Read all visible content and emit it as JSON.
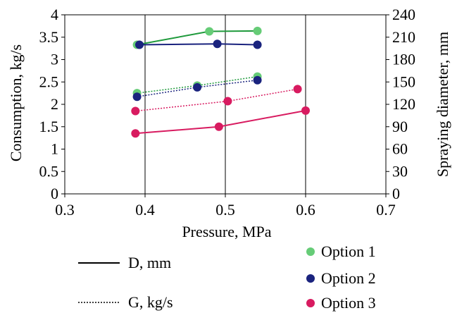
{
  "chart_data": {
    "type": "scatter",
    "title": "",
    "xlabel": "Pressure, MPa",
    "ylabel_left": "Consumption, kg/s",
    "ylabel_right": "Spraying diameter, mm",
    "xlim": [
      0.3,
      0.7
    ],
    "ylim_left": [
      0,
      4
    ],
    "ylim_right": [
      0,
      240
    ],
    "x_ticks": [
      "0.3",
      "0.4",
      "0.5",
      "0.6",
      "0.7"
    ],
    "y_left_ticks": [
      "0",
      "0.5",
      "1",
      "1.5",
      "2",
      "2.5",
      "3",
      "3.5",
      "4"
    ],
    "y_right_ticks": [
      "0",
      "30",
      "60",
      "90",
      "120",
      "150",
      "180",
      "210",
      "240"
    ],
    "grid": "vertical",
    "legend": {
      "line_styles": [
        {
          "label": "D, mm",
          "style": "solid"
        },
        {
          "label": "G, kg/s",
          "style": "dotted"
        }
      ],
      "markers": [
        {
          "label": "Option 1",
          "color": "#66cc77"
        },
        {
          "label": "Option 2",
          "color": "#1a237e"
        },
        {
          "label": "Option 3",
          "color": "#d81b60"
        }
      ]
    },
    "series": [
      {
        "option": "Option 1",
        "metric": "D, mm",
        "style": "solid",
        "color": "#66cc77",
        "line_color": "#1f9a3c",
        "x": [
          0.39,
          0.48,
          0.54
        ],
        "y": [
          3.33,
          3.63,
          3.64
        ]
      },
      {
        "option": "Option 2",
        "metric": "D, mm",
        "style": "solid",
        "color": "#1a237e",
        "line_color": "#1a237e",
        "x": [
          0.393,
          0.49,
          0.54
        ],
        "y": [
          3.33,
          3.35,
          3.33
        ]
      },
      {
        "option": "Option 1",
        "metric": "G, kg/s",
        "style": "dotted",
        "color": "#66cc77",
        "line_color": "#1f9a3c",
        "x": [
          0.39,
          0.465,
          0.54
        ],
        "y": [
          2.25,
          2.42,
          2.62
        ]
      },
      {
        "option": "Option 2",
        "metric": "G, kg/s",
        "style": "dotted",
        "color": "#1a237e",
        "line_color": "#1a237e",
        "x": [
          0.39,
          0.465,
          0.54
        ],
        "y": [
          2.17,
          2.38,
          2.54
        ]
      },
      {
        "option": "Option 3",
        "metric": "G, kg/s",
        "style": "dotted",
        "color": "#d81b60",
        "line_color": "#d81b60",
        "x": [
          0.388,
          0.503,
          0.59
        ],
        "y": [
          1.85,
          2.07,
          2.34
        ]
      },
      {
        "option": "Option 3",
        "metric": "D, mm",
        "style": "solid",
        "color": "#d81b60",
        "line_color": "#d81b60",
        "x": [
          0.388,
          0.492,
          0.6
        ],
        "y": [
          1.35,
          1.5,
          1.86
        ]
      }
    ]
  }
}
